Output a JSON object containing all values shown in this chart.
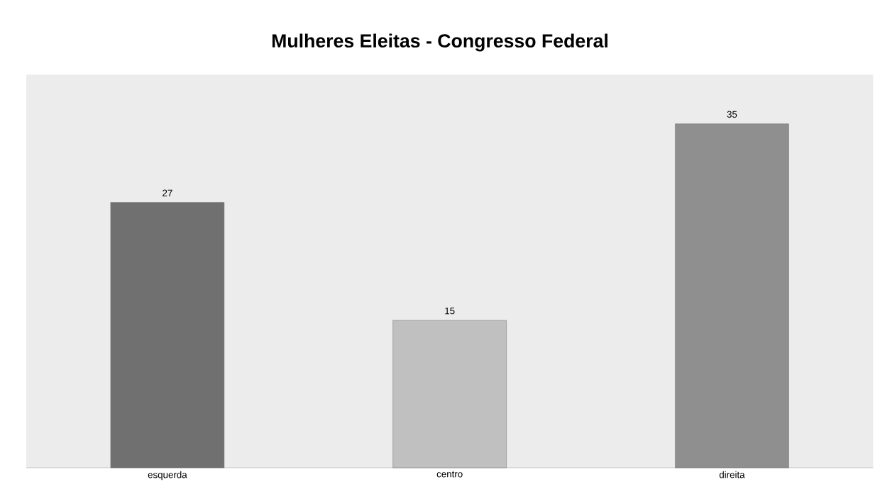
{
  "chart_data": {
    "type": "bar",
    "title": "Mulheres Eleitas - Congresso Federal",
    "categories": [
      "esquerda",
      "centro",
      "direita"
    ],
    "values": [
      27,
      15,
      35
    ],
    "colors": [
      "#707070",
      "#c0c0c0",
      "#8f8f8f"
    ],
    "ylim": [
      0,
      40
    ],
    "data_labels": true,
    "tick_labels": "x"
  }
}
